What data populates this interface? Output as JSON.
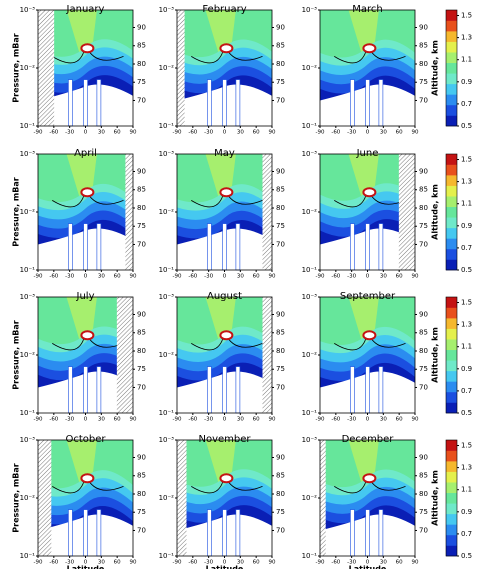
{
  "chart_data": {
    "type": "contour",
    "panels": [
      "January",
      "February",
      "March",
      "April",
      "May",
      "June",
      "July",
      "August",
      "September",
      "October",
      "November",
      "December"
    ],
    "xlabel": "Latitude",
    "ylabel": "Pressure, mBar",
    "y2label": "Altitude, km",
    "xlim": [
      -90,
      90
    ],
    "xticks": [
      -90,
      -60,
      -30,
      0,
      30,
      60,
      90
    ],
    "ylim": [
      0.001,
      0.1
    ],
    "log_y": true,
    "yticks": [
      {
        "value": 0.001,
        "label": "10⁻³"
      },
      {
        "value": 0.01,
        "label": "10⁻²"
      },
      {
        "value": 0.1,
        "label": "10⁻¹"
      }
    ],
    "y2lim": [
      63,
      94.8
    ],
    "y2ticks": [
      70,
      75,
      80,
      85,
      90
    ],
    "colorbar": {
      "lim": [
        0.5,
        1.55
      ],
      "ticks": [
        0.5,
        0.7,
        0.9,
        1.1,
        1.3,
        1.5
      ],
      "colors": [
        "#0a1fb5",
        "#1b4fe0",
        "#2b8cf0",
        "#45c8f0",
        "#6fe9c9",
        "#66e69b",
        "#a6ef6e",
        "#e4f04c",
        "#f5b82e",
        "#e8501c",
        "#c41313"
      ]
    }
  }
}
